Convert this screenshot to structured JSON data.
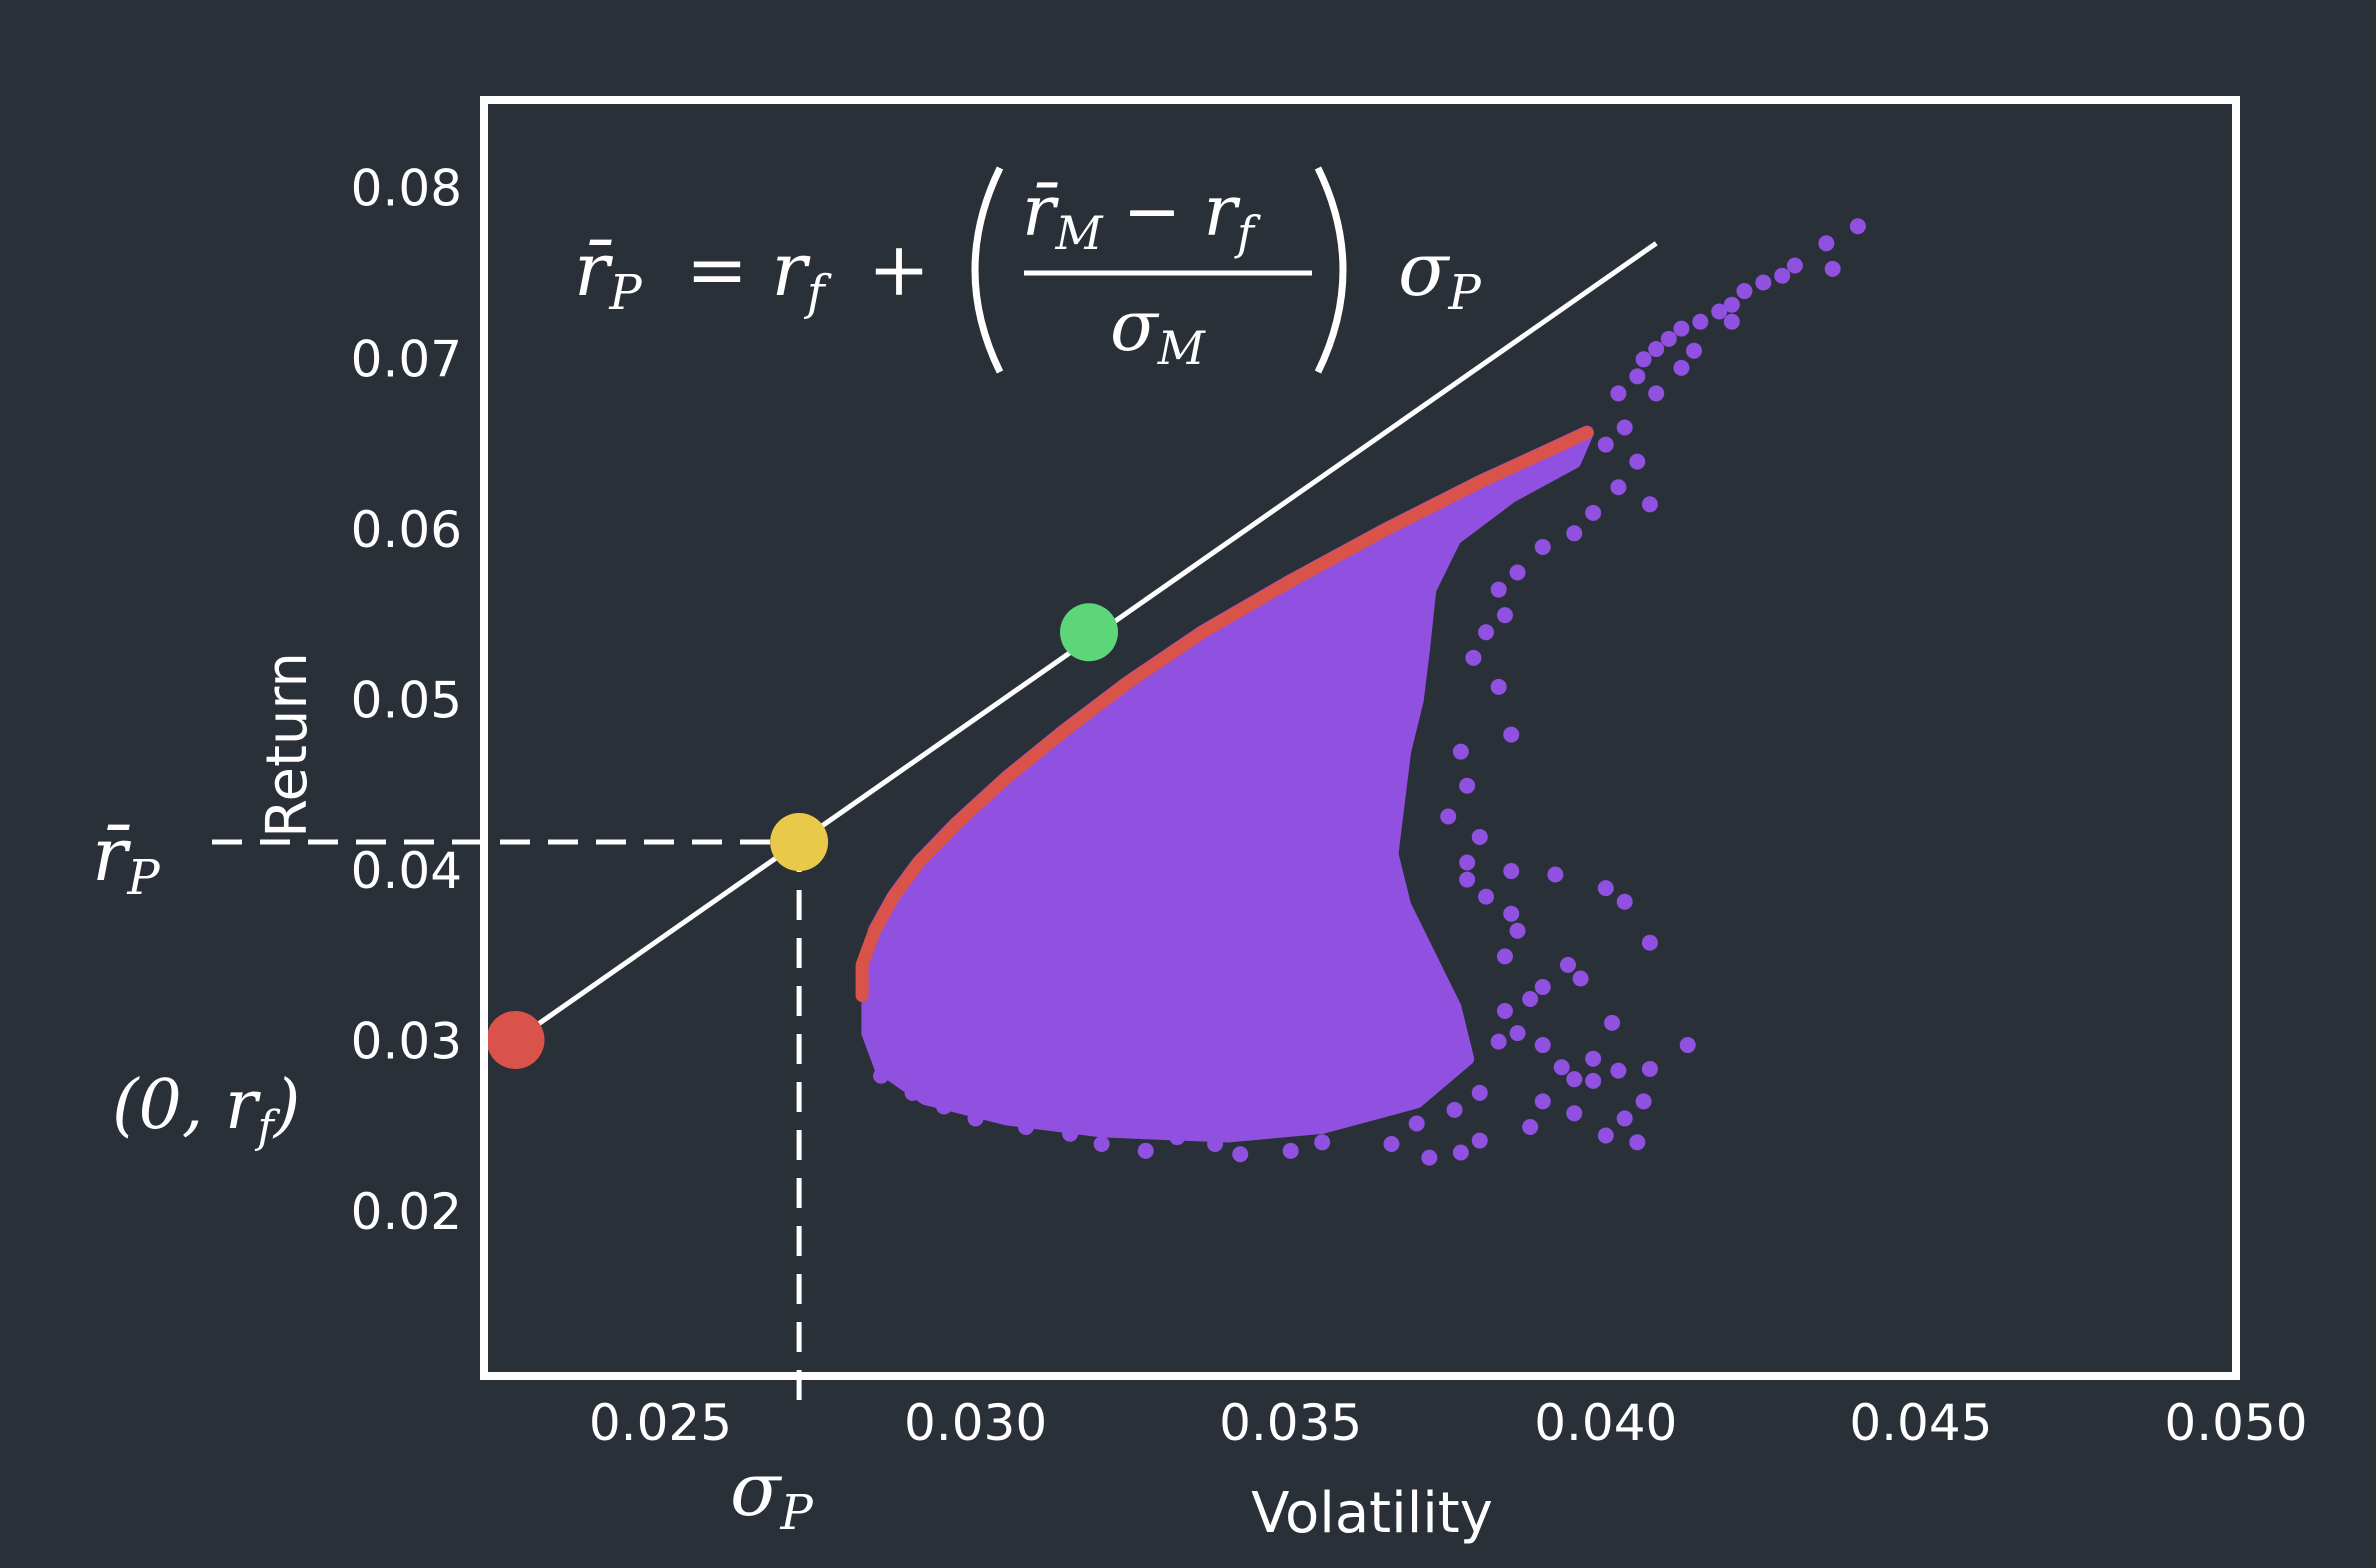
{
  "chart_data": {
    "type": "scatter",
    "xlabel": "Volatility",
    "ylabel": "Return",
    "xlim": [
      0.0222,
      0.05
    ],
    "ylim": [
      0.0104,
      0.0852
    ],
    "xticks": [
      "0.025",
      "0.030",
      "0.035",
      "0.040",
      "0.045",
      "0.050"
    ],
    "yticks": [
      "0.02",
      "0.03",
      "0.04",
      "0.05",
      "0.06",
      "0.07",
      "0.08"
    ],
    "capital_market_line": {
      "start": [
        0.0227,
        0.0301
      ],
      "end": [
        0.0408,
        0.0768
      ],
      "color": "#ffffff"
    },
    "efficient_frontier": {
      "color": "#d9534a",
      "points": [
        [
          0.0282,
          0.0327
        ],
        [
          0.0282,
          0.0345
        ],
        [
          0.0284,
          0.0365
        ],
        [
          0.0287,
          0.0385
        ],
        [
          0.0291,
          0.0405
        ],
        [
          0.0297,
          0.0428
        ],
        [
          0.0305,
          0.0455
        ],
        [
          0.0314,
          0.0482
        ],
        [
          0.0324,
          0.051
        ],
        [
          0.0336,
          0.054
        ],
        [
          0.035,
          0.057
        ],
        [
          0.0365,
          0.06
        ],
        [
          0.038,
          0.0628
        ],
        [
          0.039,
          0.0645
        ],
        [
          0.0397,
          0.0657
        ]
      ]
    },
    "portfolio_cloud": {
      "color": "#9050e0",
      "outline": [
        [
          0.0283,
          0.0327
        ],
        [
          0.0284,
          0.0365
        ],
        [
          0.0287,
          0.0385
        ],
        [
          0.0291,
          0.0405
        ],
        [
          0.0297,
          0.0428
        ],
        [
          0.0305,
          0.0455
        ],
        [
          0.0314,
          0.0482
        ],
        [
          0.0324,
          0.051
        ],
        [
          0.0336,
          0.054
        ],
        [
          0.035,
          0.057
        ],
        [
          0.0365,
          0.06
        ],
        [
          0.038,
          0.0628
        ],
        [
          0.039,
          0.0645
        ],
        [
          0.0397,
          0.0657
        ],
        [
          0.0395,
          0.064
        ],
        [
          0.0385,
          0.062
        ],
        [
          0.0376,
          0.0595
        ],
        [
          0.0372,
          0.0565
        ],
        [
          0.0371,
          0.053
        ],
        [
          0.037,
          0.05
        ],
        [
          0.0368,
          0.047
        ],
        [
          0.0367,
          0.044
        ],
        [
          0.0366,
          0.041
        ],
        [
          0.0368,
          0.038
        ],
        [
          0.0372,
          0.035
        ],
        [
          0.0376,
          0.032
        ],
        [
          0.0378,
          0.029
        ],
        [
          0.037,
          0.0265
        ],
        [
          0.0355,
          0.025
        ],
        [
          0.034,
          0.0245
        ],
        [
          0.032,
          0.0248
        ],
        [
          0.0305,
          0.0255
        ],
        [
          0.0292,
          0.0267
        ],
        [
          0.0285,
          0.0285
        ],
        [
          0.0283,
          0.0305
        ]
      ],
      "outliers": [
        [
          0.044,
          0.0778
        ],
        [
          0.0435,
          0.0768
        ],
        [
          0.0436,
          0.0753
        ],
        [
          0.043,
          0.0755
        ],
        [
          0.0428,
          0.0749
        ],
        [
          0.0425,
          0.0745
        ],
        [
          0.0422,
          0.074
        ],
        [
          0.042,
          0.0732
        ],
        [
          0.0418,
          0.0728
        ],
        [
          0.0415,
          0.0722
        ],
        [
          0.0412,
          0.0718
        ],
        [
          0.041,
          0.0712
        ],
        [
          0.0408,
          0.0706
        ],
        [
          0.0406,
          0.07
        ],
        [
          0.0414,
          0.0705
        ],
        [
          0.042,
          0.0722
        ],
        [
          0.0412,
          0.0695
        ],
        [
          0.0405,
          0.069
        ],
        [
          0.0402,
          0.068
        ],
        [
          0.0408,
          0.068
        ],
        [
          0.0403,
          0.066
        ],
        [
          0.04,
          0.065
        ],
        [
          0.0405,
          0.064
        ],
        [
          0.0402,
          0.0625
        ],
        [
          0.0407,
          0.0615
        ],
        [
          0.0398,
          0.061
        ],
        [
          0.0395,
          0.0598
        ],
        [
          0.039,
          0.059
        ],
        [
          0.0386,
          0.0575
        ],
        [
          0.0383,
          0.0565
        ],
        [
          0.0384,
          0.055
        ],
        [
          0.0381,
          0.054
        ],
        [
          0.0379,
          0.0525
        ],
        [
          0.0383,
          0.0508
        ],
        [
          0.0385,
          0.048
        ],
        [
          0.0377,
          0.047
        ],
        [
          0.0378,
          0.045
        ],
        [
          0.0375,
          0.0432
        ],
        [
          0.038,
          0.042
        ],
        [
          0.0378,
          0.0405
        ],
        [
          0.0385,
          0.04
        ],
        [
          0.0378,
          0.0395
        ],
        [
          0.0381,
          0.0385
        ],
        [
          0.0385,
          0.0375
        ],
        [
          0.0386,
          0.0365
        ],
        [
          0.0384,
          0.035
        ],
        [
          0.0392,
          0.0398
        ],
        [
          0.04,
          0.039
        ],
        [
          0.0403,
          0.0382
        ],
        [
          0.0407,
          0.0358
        ],
        [
          0.0394,
          0.0345
        ],
        [
          0.0396,
          0.0337
        ],
        [
          0.039,
          0.0332
        ],
        [
          0.0388,
          0.0325
        ],
        [
          0.0384,
          0.0318
        ],
        [
          0.0386,
          0.0305
        ],
        [
          0.0383,
          0.03
        ],
        [
          0.039,
          0.0298
        ],
        [
          0.0398,
          0.029
        ],
        [
          0.0393,
          0.0285
        ],
        [
          0.0402,
          0.0283
        ],
        [
          0.0398,
          0.0277
        ],
        [
          0.038,
          0.027
        ],
        [
          0.0376,
          0.026
        ],
        [
          0.037,
          0.0252
        ],
        [
          0.0366,
          0.024
        ],
        [
          0.0377,
          0.0235
        ],
        [
          0.0372,
          0.0232
        ],
        [
          0.038,
          0.0242
        ],
        [
          0.039,
          0.0265
        ],
        [
          0.0395,
          0.0258
        ],
        [
          0.0388,
          0.025
        ],
        [
          0.0395,
          0.0278
        ],
        [
          0.0401,
          0.0311
        ],
        [
          0.0403,
          0.0255
        ],
        [
          0.0406,
          0.0265
        ],
        [
          0.0407,
          0.0284
        ],
        [
          0.0413,
          0.0298
        ],
        [
          0.04,
          0.0245
        ],
        [
          0.0405,
          0.0241
        ],
        [
          0.0355,
          0.0241
        ],
        [
          0.035,
          0.0236
        ],
        [
          0.0342,
          0.0234
        ],
        [
          0.0338,
          0.024
        ],
        [
          0.0332,
          0.0244
        ],
        [
          0.0327,
          0.0236
        ],
        [
          0.032,
          0.024
        ],
        [
          0.0315,
          0.0246
        ],
        [
          0.0308,
          0.025
        ],
        [
          0.03,
          0.0255
        ],
        [
          0.0295,
          0.0262
        ],
        [
          0.029,
          0.027
        ],
        [
          0.0285,
          0.028
        ]
      ]
    },
    "markers": [
      {
        "name": "risk-free",
        "x": 0.0227,
        "y": 0.0301,
        "color": "#d9534a"
      },
      {
        "name": "portfolio",
        "x": 0.0272,
        "y": 0.0417,
        "color": "#e8c94a"
      },
      {
        "name": "market",
        "x": 0.0318,
        "y": 0.054,
        "color": "#5dd67a"
      }
    ],
    "guide_lines": {
      "x": 0.0272,
      "y": 0.0417,
      "style": "dashed",
      "color": "#ffffff"
    },
    "annotations": {
      "formula_lhs": "r̄",
      "formula_lhs_sub": "P",
      "formula_eq": "= r",
      "formula_eq_sub": "f",
      "formula_plus": "+",
      "formula_num": "r̄",
      "formula_num_sub": "M",
      "formula_minus": "− r",
      "formula_minus_sub": "f",
      "formula_den": "σ",
      "formula_den_sub": "M",
      "formula_sigma": "σ",
      "formula_sigma_sub": "P",
      "rp_label": "r̄",
      "rp_label_sub": "P",
      "rf_point_open": "(0, r",
      "rf_point_sub": "f",
      "rf_point_close": ")",
      "sigma_p_label": "σ",
      "sigma_p_label_sub": "P"
    }
  }
}
